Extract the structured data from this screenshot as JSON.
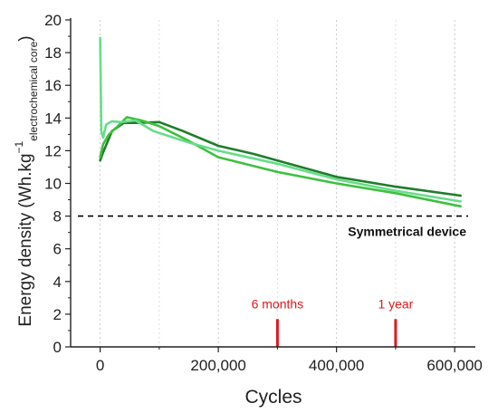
{
  "chart_data": {
    "type": "line",
    "title": "",
    "xlabel": "Cycles",
    "ylabel": {
      "main": "Energy density (Wh.kg",
      "superscript": "−1",
      "subscript": "electrochemical core",
      "close": ")"
    },
    "xlim": [
      -50000,
      635000
    ],
    "ylim": [
      0,
      20
    ],
    "xticks": [
      0,
      200000,
      400000,
      600000
    ],
    "xtick_labels": [
      "0",
      "200,000",
      "400,000",
      "600,000"
    ],
    "yticks": [
      0,
      2,
      4,
      6,
      8,
      10,
      12,
      14,
      16,
      18,
      20
    ],
    "ytick_labels": [
      "0",
      "2",
      "4",
      "6",
      "8",
      "10",
      "12",
      "14",
      "16",
      "18",
      "20"
    ],
    "grid": "vertical-dotted",
    "series": [
      {
        "color": "#1e7d2b",
        "points": [
          [
            0,
            11.4
          ],
          [
            5000,
            11.9
          ],
          [
            20000,
            13.2
          ],
          [
            40000,
            13.7
          ],
          [
            60000,
            13.7
          ],
          [
            100000,
            13.75
          ],
          [
            140000,
            13.2
          ],
          [
            200000,
            12.3
          ],
          [
            260000,
            11.8
          ],
          [
            300000,
            11.4
          ],
          [
            400000,
            10.4
          ],
          [
            500000,
            9.8
          ],
          [
            610000,
            9.25
          ]
        ]
      },
      {
        "color": "#3fbf3f",
        "points": [
          [
            0,
            11.6
          ],
          [
            5000,
            12.4
          ],
          [
            15000,
            13.0
          ],
          [
            30000,
            13.5
          ],
          [
            45000,
            14.05
          ],
          [
            70000,
            13.85
          ],
          [
            100000,
            13.5
          ],
          [
            150000,
            12.6
          ],
          [
            200000,
            11.6
          ],
          [
            300000,
            10.7
          ],
          [
            400000,
            10.0
          ],
          [
            500000,
            9.4
          ],
          [
            610000,
            8.6
          ]
        ]
      },
      {
        "color": "#66dd88",
        "points": [
          [
            0,
            18.9
          ],
          [
            2000,
            13.2
          ],
          [
            5000,
            12.8
          ],
          [
            10000,
            13.6
          ],
          [
            20000,
            13.8
          ],
          [
            35000,
            13.75
          ],
          [
            60000,
            13.85
          ],
          [
            90000,
            13.2
          ],
          [
            150000,
            12.5
          ],
          [
            200000,
            12.0
          ],
          [
            300000,
            11.2
          ],
          [
            400000,
            10.25
          ],
          [
            500000,
            9.55
          ],
          [
            610000,
            8.9
          ]
        ]
      }
    ],
    "reference_line": {
      "y": 8,
      "style": "dashed",
      "color": "#000000",
      "label": "Symmetrical device"
    },
    "markers": [
      {
        "x": 300000,
        "label": "6 months",
        "color": "#e0191c"
      },
      {
        "x": 500000,
        "label": "1 year",
        "color": "#e0191c"
      }
    ]
  }
}
